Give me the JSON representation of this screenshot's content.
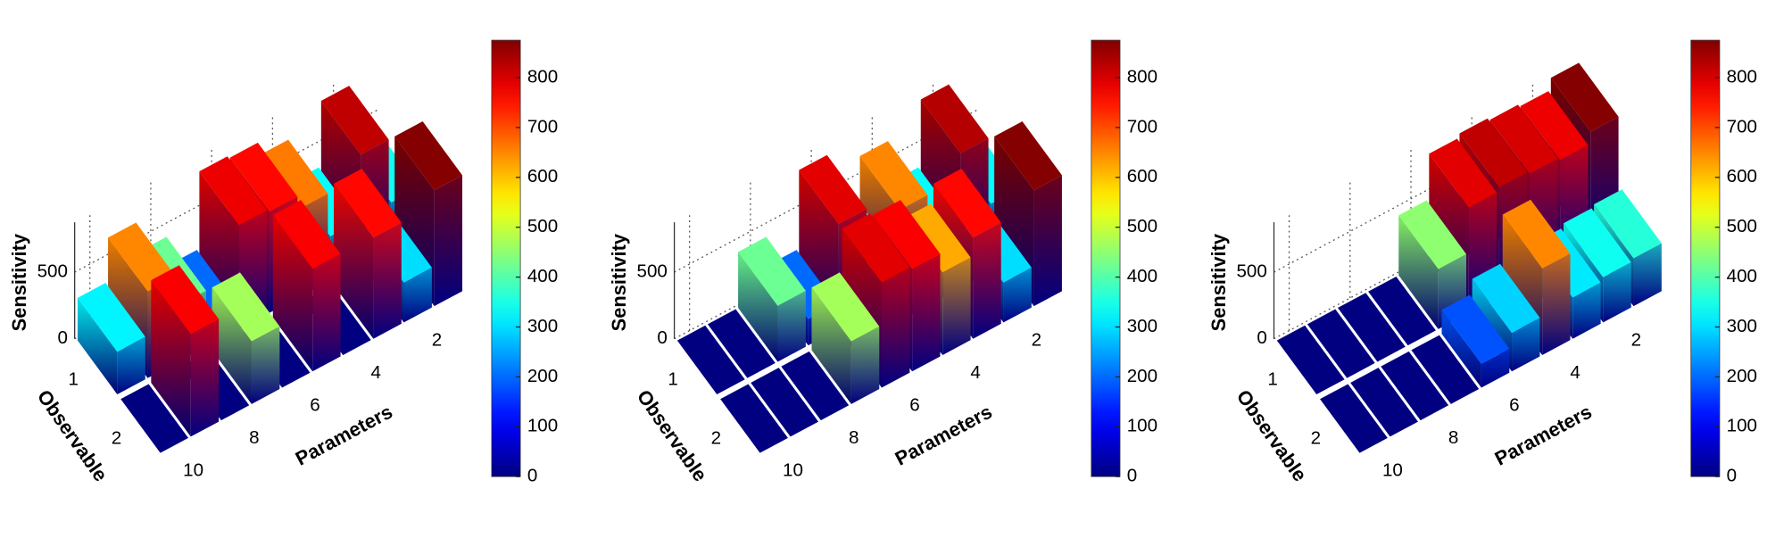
{
  "chart_data": [
    {
      "type": "bar3d",
      "x_label": "Parameters",
      "y_label": "Observable",
      "z_label": "Sensitivity",
      "x": [
        1,
        2,
        3,
        4,
        5,
        6,
        7,
        8,
        9,
        10
      ],
      "xlim": [
        0.5,
        10.5
      ],
      "xticks": [
        2,
        4,
        6,
        8,
        10
      ],
      "y": [
        1,
        2
      ],
      "ylim": [
        0.5,
        2.5
      ],
      "yticks": [
        1,
        2
      ],
      "zlim": [
        0,
        875
      ],
      "zticks": [
        0,
        500
      ],
      "colormap": "jet",
      "values": [
        [
          340,
          820,
          330,
          660,
          760,
          780,
          200,
          420,
          650,
          320
        ],
        [
          870,
          300,
          760,
          0,
          770,
          0,
          470,
          0,
          770,
          0
        ]
      ],
      "colorbar": {
        "lim": [
          0,
          875
        ],
        "ticks": [
          0,
          100,
          200,
          300,
          400,
          500,
          600,
          700,
          800
        ]
      }
    },
    {
      "type": "bar3d",
      "x_label": "Parameters",
      "y_label": "Observable",
      "z_label": "Sensitivity",
      "x": [
        1,
        2,
        3,
        4,
        5,
        6,
        7,
        8,
        9,
        10
      ],
      "xlim": [
        0.5,
        10.5
      ],
      "xticks": [
        2,
        4,
        6,
        8,
        10
      ],
      "y": [
        1,
        2
      ],
      "ylim": [
        0.5,
        2.5
      ],
      "yticks": [
        1,
        2
      ],
      "zlim": [
        0,
        875
      ],
      "zticks": [
        0,
        500
      ],
      "colormap": "jet",
      "values": [
        [
          330,
          830,
          330,
          650,
          330,
          790,
          200,
          420,
          0,
          0
        ],
        [
          870,
          300,
          760,
          620,
          770,
          790,
          470,
          0,
          0,
          0
        ]
      ],
      "colorbar": {
        "lim": [
          0,
          875
        ],
        "ticks": [
          0,
          100,
          200,
          300,
          400,
          500,
          600,
          700,
          800
        ]
      }
    },
    {
      "type": "bar3d",
      "x_label": "Parameters",
      "y_label": "Observable",
      "z_label": "Sensitivity",
      "x": [
        1,
        2,
        3,
        4,
        5,
        6,
        7,
        8,
        9,
        10
      ],
      "xlim": [
        0.5,
        10.5
      ],
      "xticks": [
        2,
        4,
        6,
        8,
        10
      ],
      "y": [
        1,
        2
      ],
      "ylim": [
        0.5,
        2.5
      ],
      "yticks": [
        1,
        2
      ],
      "zlim": [
        0,
        875
      ],
      "zticks": [
        0,
        500
      ],
      "colormap": "jet",
      "values": [
        [
          870,
          780,
          800,
          820,
          790,
          450,
          0,
          0,
          0,
          0
        ],
        [
          360,
          340,
          310,
          650,
          290,
          180,
          0,
          0,
          0,
          0
        ]
      ],
      "colorbar": {
        "lim": [
          0,
          875
        ],
        "ticks": [
          0,
          100,
          200,
          300,
          400,
          500,
          600,
          700,
          800
        ]
      }
    }
  ]
}
